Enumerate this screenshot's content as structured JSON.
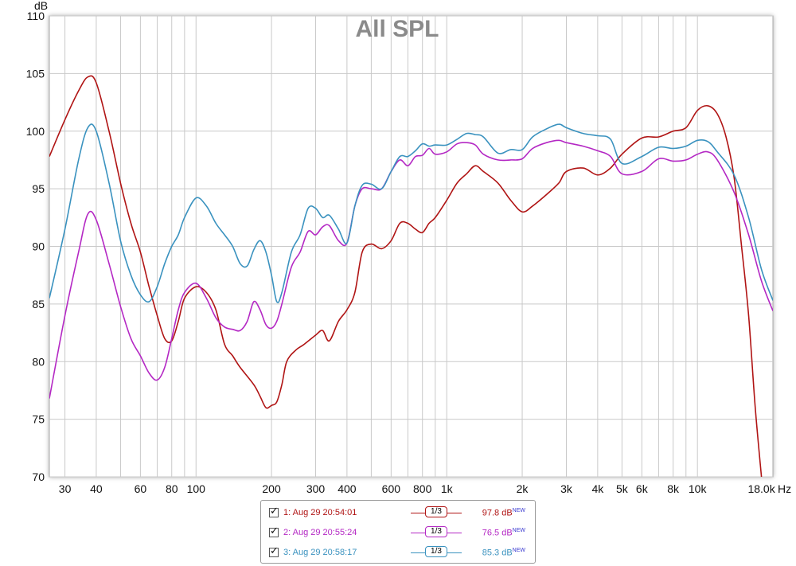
{
  "chart_data": {
    "type": "line",
    "title": "All SPL",
    "ylabel": "dB",
    "xlabel": "Hz",
    "x_scale": "log",
    "xlim": [
      26,
      20000
    ],
    "ylim": [
      70,
      110
    ],
    "y_ticks": [
      70,
      75,
      80,
      85,
      90,
      95,
      100,
      105,
      110
    ],
    "x_ticks": [
      {
        "value": 30,
        "label": "30"
      },
      {
        "value": 40,
        "label": "40"
      },
      {
        "value": 60,
        "label": "60"
      },
      {
        "value": 80,
        "label": "80"
      },
      {
        "value": 100,
        "label": "100"
      },
      {
        "value": 200,
        "label": "200"
      },
      {
        "value": 300,
        "label": "300"
      },
      {
        "value": 400,
        "label": "400"
      },
      {
        "value": 600,
        "label": "600"
      },
      {
        "value": 800,
        "label": "800"
      },
      {
        "value": 1000,
        "label": "1k"
      },
      {
        "value": 2000,
        "label": "2k"
      },
      {
        "value": 3000,
        "label": "3k"
      },
      {
        "value": 4000,
        "label": "4k"
      },
      {
        "value": 5000,
        "label": "5k"
      },
      {
        "value": 6000,
        "label": "6k"
      },
      {
        "value": 8000,
        "label": "8k"
      },
      {
        "value": 10000,
        "label": "10k"
      },
      {
        "value": 18000,
        "label": "18.0k"
      }
    ],
    "grid": true,
    "x_gridlines": [
      30,
      40,
      50,
      60,
      70,
      80,
      90,
      100,
      200,
      300,
      400,
      500,
      600,
      700,
      800,
      900,
      1000,
      2000,
      3000,
      4000,
      5000,
      6000,
      7000,
      8000,
      9000,
      10000,
      20000
    ],
    "series": [
      {
        "name": "1: Aug 29 20:54:01",
        "color": "#b01414",
        "x": [
          26,
          30,
          34,
          37,
          40,
          45,
          50,
          55,
          60,
          65,
          70,
          75,
          80,
          85,
          90,
          100,
          110,
          120,
          130,
          140,
          150,
          170,
          180,
          190,
          200,
          210,
          220,
          230,
          250,
          270,
          300,
          320,
          340,
          370,
          400,
          430,
          460,
          500,
          550,
          600,
          650,
          700,
          750,
          800,
          850,
          900,
          1000,
          1100,
          1200,
          1300,
          1400,
          1600,
          1800,
          2000,
          2200,
          2500,
          2800,
          3000,
          3500,
          4000,
          4500,
          5000,
          6000,
          7000,
          8000,
          9000,
          10000,
          11000,
          12000,
          13000,
          14000,
          15000,
          16000,
          17000,
          18000
        ],
        "y": [
          97.8,
          101,
          103.5,
          104.7,
          104.2,
          100,
          95.5,
          92,
          89.5,
          86.5,
          84,
          82,
          81.8,
          83.5,
          85.5,
          86.5,
          86,
          84.5,
          81.5,
          80.5,
          79.5,
          78,
          77,
          76,
          76.2,
          76.5,
          78,
          80,
          81,
          81.5,
          82.3,
          82.7,
          81.8,
          83.5,
          84.5,
          86,
          89.5,
          90.2,
          89.8,
          90.5,
          92,
          92,
          91.5,
          91.2,
          92,
          92.5,
          94,
          95.5,
          96.3,
          97,
          96.5,
          95.5,
          94,
          93,
          93.5,
          94.5,
          95.5,
          96.5,
          96.8,
          96.2,
          96.8,
          98,
          99.4,
          99.5,
          100,
          100.3,
          101.8,
          102.2,
          101.5,
          99.5,
          96,
          90,
          84,
          76,
          70
        ]
      },
      {
        "name": "2: Aug 29 20:55:24",
        "color": "#b428c4",
        "x": [
          26,
          30,
          34,
          37,
          40,
          45,
          50,
          55,
          60,
          65,
          70,
          75,
          80,
          85,
          90,
          100,
          110,
          120,
          130,
          140,
          150,
          160,
          170,
          180,
          190,
          200,
          210,
          220,
          240,
          260,
          280,
          300,
          320,
          340,
          370,
          400,
          430,
          460,
          500,
          550,
          600,
          650,
          700,
          750,
          800,
          850,
          900,
          1000,
          1100,
          1200,
          1300,
          1400,
          1600,
          1800,
          2000,
          2200,
          2500,
          2800,
          3000,
          3500,
          4000,
          4500,
          5000,
          6000,
          7000,
          8000,
          9000,
          10000,
          11000,
          12000,
          14000,
          16000,
          18000,
          20000
        ],
        "y": [
          76.8,
          84,
          89.5,
          92.8,
          92.3,
          88.5,
          84.8,
          82,
          80.5,
          79,
          78.4,
          79.5,
          82,
          84.5,
          86,
          86.8,
          85.5,
          83.8,
          83,
          82.8,
          82.7,
          83.5,
          85.2,
          84.5,
          83.2,
          82.9,
          83.5,
          85,
          88.2,
          89.5,
          91.3,
          91,
          91.7,
          91.8,
          90.5,
          90.3,
          93.5,
          95,
          95,
          95,
          96.5,
          97.5,
          97,
          97.8,
          97.9,
          98.5,
          98,
          98.2,
          98.9,
          99,
          98.8,
          98,
          97.5,
          97.5,
          97.6,
          98.5,
          99,
          99.2,
          99,
          98.7,
          98.3,
          97.8,
          96.3,
          96.5,
          97.6,
          97.4,
          97.5,
          98,
          98.2,
          97.5,
          94.7,
          91,
          87,
          84.4
        ]
      },
      {
        "name": "3: Aug 29 20:58:17",
        "color": "#3a92bf",
        "x": [
          26,
          30,
          34,
          37,
          40,
          45,
          50,
          55,
          60,
          65,
          70,
          75,
          80,
          85,
          90,
          100,
          110,
          120,
          130,
          140,
          150,
          160,
          170,
          180,
          190,
          200,
          210,
          220,
          240,
          260,
          280,
          300,
          320,
          340,
          370,
          400,
          430,
          460,
          500,
          550,
          600,
          650,
          700,
          750,
          800,
          850,
          900,
          1000,
          1100,
          1200,
          1300,
          1400,
          1600,
          1800,
          2000,
          2200,
          2500,
          2800,
          3000,
          3500,
          4000,
          4500,
          5000,
          6000,
          7000,
          8000,
          9000,
          10000,
          11000,
          12000,
          14000,
          16000,
          18000,
          20000
        ],
        "y": [
          85.5,
          91.5,
          97.5,
          100.3,
          100,
          95.5,
          90.5,
          87.5,
          85.8,
          85.2,
          86.5,
          88.5,
          90,
          91,
          92.5,
          94.2,
          93.5,
          92,
          91,
          90,
          88.5,
          88.3,
          89.7,
          90.5,
          89.5,
          87.5,
          85.2,
          86,
          89.5,
          91,
          93.3,
          93.3,
          92.5,
          92.7,
          91.5,
          90.3,
          93.5,
          95.3,
          95.4,
          95,
          96.5,
          97.8,
          97.8,
          98.3,
          98.9,
          98.7,
          98.8,
          98.8,
          99.3,
          99.8,
          99.7,
          99.5,
          98.1,
          98.4,
          98.4,
          99.5,
          100.2,
          100.6,
          100.3,
          99.8,
          99.6,
          99.3,
          97.2,
          97.8,
          98.6,
          98.5,
          98.7,
          99.2,
          99.1,
          98.2,
          96.2,
          92.5,
          88,
          85.3
        ]
      }
    ],
    "legend": {
      "placement": "bottom-center",
      "entries": [
        {
          "name": "1: Aug 29 20:54:01",
          "smoothing": "1/3",
          "value": "97.8 dB",
          "badge": "NEW",
          "color": "#b01414"
        },
        {
          "name": "2: Aug 29 20:55:24",
          "smoothing": "1/3",
          "value": "76.5 dB",
          "badge": "NEW",
          "color": "#b428c4"
        },
        {
          "name": "3: Aug 29 20:58:17",
          "smoothing": "1/3",
          "value": "85.3 dB",
          "badge": "NEW",
          "color": "#3a92bf"
        }
      ]
    }
  }
}
